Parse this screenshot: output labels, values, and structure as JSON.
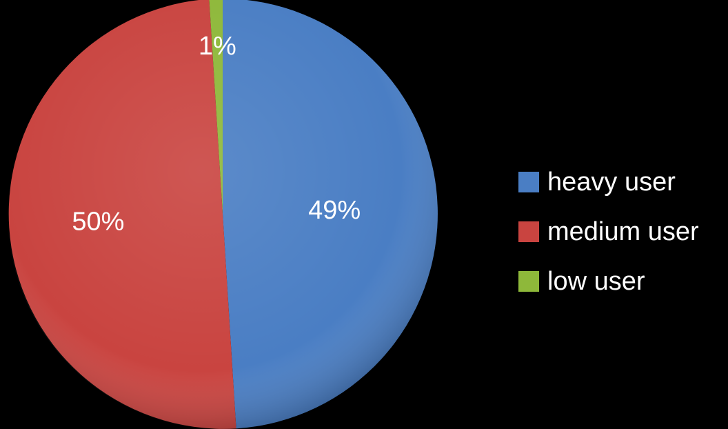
{
  "chart_data": {
    "type": "pie",
    "title": "",
    "categories": [
      "heavy user",
      "medium user",
      "low user"
    ],
    "values": [
      49,
      50,
      1
    ],
    "data_labels": [
      "49%",
      "50%",
      "1%"
    ],
    "colors": [
      "#4A7EC4",
      "#C94440",
      "#8EB83A"
    ],
    "legend_placement": "right",
    "start_angle_deg": 0,
    "direction": "clockwise"
  }
}
